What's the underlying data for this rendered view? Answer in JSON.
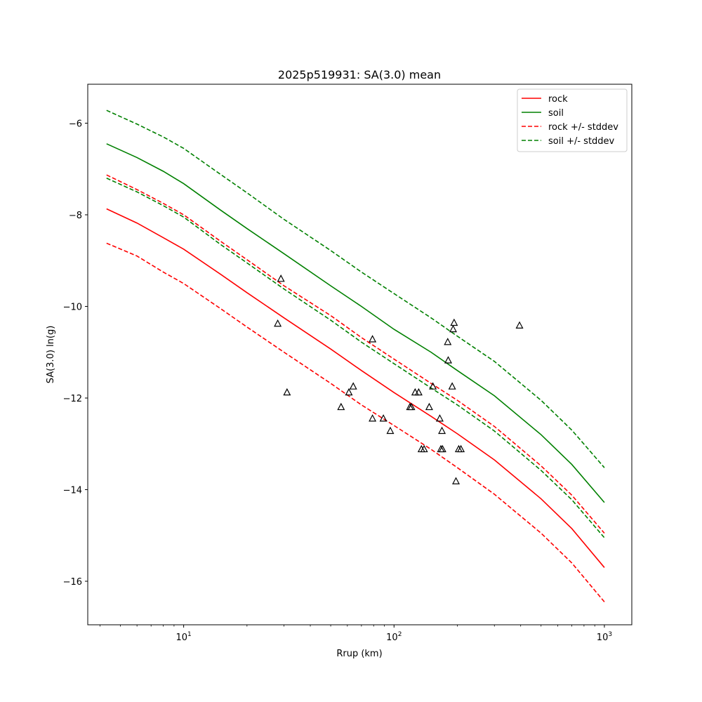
{
  "chart_data": {
    "type": "line",
    "title": "2025p519931: SA(3.0) mean",
    "xlabel": "Rrup (km)",
    "ylabel": "SA(3.0) ln(g)",
    "xscale": "log",
    "xlim": [
      3.5,
      1350
    ],
    "ylim": [
      -16.95,
      -5.15
    ],
    "yticks": [
      -16,
      -14,
      -12,
      -10,
      -8,
      -6
    ],
    "xticks_major": [
      {
        "value": 10,
        "base": "10",
        "exp": "1"
      },
      {
        "value": 100,
        "base": "10",
        "exp": "2"
      },
      {
        "value": 1000,
        "base": "10",
        "exp": "3"
      }
    ],
    "legend_position": "top-right",
    "grid": false,
    "x": [
      4.3,
      6,
      8,
      10,
      15,
      20,
      30,
      50,
      70,
      100,
      150,
      200,
      300,
      500,
      700,
      1000
    ],
    "series": [
      {
        "name": "rock",
        "color": "#ff0000",
        "dashed": false,
        "values": [
          -7.87,
          -8.18,
          -8.5,
          -8.75,
          -9.3,
          -9.7,
          -10.25,
          -10.93,
          -11.4,
          -11.88,
          -12.4,
          -12.78,
          -13.35,
          -14.2,
          -14.85,
          -15.7
        ]
      },
      {
        "name": "soil",
        "color": "#008000",
        "dashed": false,
        "values": [
          -6.45,
          -6.75,
          -7.05,
          -7.32,
          -7.9,
          -8.3,
          -8.85,
          -9.55,
          -10.0,
          -10.5,
          -11.0,
          -11.4,
          -11.95,
          -12.8,
          -13.45,
          -14.28
        ]
      },
      {
        "name": "rock +/- stddev",
        "color": "#ff0000",
        "dashed": true,
        "values": [
          -7.13,
          -7.45,
          -7.75,
          -8.0,
          -8.58,
          -8.98,
          -9.55,
          -10.2,
          -10.68,
          -11.15,
          -11.68,
          -12.05,
          -12.62,
          -13.48,
          -14.12,
          -14.95
        ]
      },
      {
        "name": "",
        "color": "#ff0000",
        "dashed": true,
        "values": [
          -8.62,
          -8.9,
          -9.25,
          -9.5,
          -10.05,
          -10.45,
          -11.0,
          -11.68,
          -12.15,
          -12.6,
          -13.12,
          -13.52,
          -14.1,
          -14.95,
          -15.6,
          -16.45
        ]
      },
      {
        "name": "soil +/- stddev",
        "color": "#008000",
        "dashed": true,
        "values": [
          -5.72,
          -6.02,
          -6.3,
          -6.55,
          -7.12,
          -7.52,
          -8.1,
          -8.78,
          -9.25,
          -9.72,
          -10.25,
          -10.65,
          -11.2,
          -12.05,
          -12.7,
          -13.52
        ]
      },
      {
        "name": "",
        "color": "#008000",
        "dashed": true,
        "values": [
          -7.2,
          -7.5,
          -7.8,
          -8.05,
          -8.65,
          -9.05,
          -9.62,
          -10.3,
          -10.78,
          -11.25,
          -11.78,
          -12.15,
          -12.72,
          -13.58,
          -14.22,
          -15.05
        ]
      }
    ],
    "observations": [
      {
        "x": 29,
        "y": -9.4
      },
      {
        "x": 28,
        "y": -10.38
      },
      {
        "x": 31,
        "y": -11.88
      },
      {
        "x": 56,
        "y": -12.2
      },
      {
        "x": 61,
        "y": -11.88
      },
      {
        "x": 64,
        "y": -11.75
      },
      {
        "x": 79,
        "y": -10.72
      },
      {
        "x": 79,
        "y": -12.45
      },
      {
        "x": 89,
        "y": -12.45
      },
      {
        "x": 96,
        "y": -12.72
      },
      {
        "x": 119,
        "y": -12.2
      },
      {
        "x": 121,
        "y": -12.2
      },
      {
        "x": 126,
        "y": -11.88
      },
      {
        "x": 131,
        "y": -11.88
      },
      {
        "x": 135,
        "y": -13.12
      },
      {
        "x": 139,
        "y": -13.12
      },
      {
        "x": 147,
        "y": -12.2
      },
      {
        "x": 153,
        "y": -11.75
      },
      {
        "x": 165,
        "y": -12.45
      },
      {
        "x": 167,
        "y": -13.12
      },
      {
        "x": 169,
        "y": -12.72
      },
      {
        "x": 170,
        "y": -13.12
      },
      {
        "x": 180,
        "y": -10.78
      },
      {
        "x": 181,
        "y": -11.18
      },
      {
        "x": 189,
        "y": -11.75
      },
      {
        "x": 191,
        "y": -10.5
      },
      {
        "x": 193,
        "y": -10.36
      },
      {
        "x": 197,
        "y": -13.82
      },
      {
        "x": 203,
        "y": -13.12
      },
      {
        "x": 208,
        "y": -13.12
      },
      {
        "x": 395,
        "y": -10.42
      }
    ]
  }
}
